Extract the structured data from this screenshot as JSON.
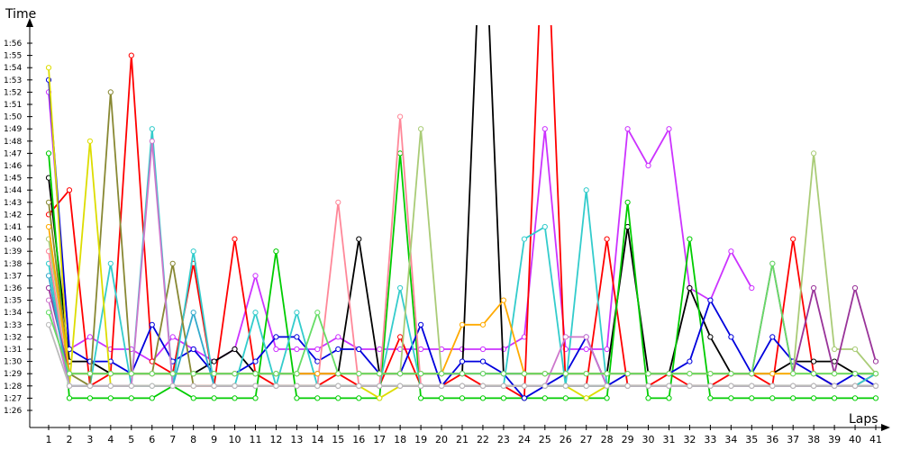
{
  "chart_data": {
    "type": "line",
    "title": "",
    "xlabel": "Laps",
    "ylabel": "Time",
    "xlim": [
      1,
      41
    ],
    "ylim_seconds": [
      84,
      118
    ],
    "grid": false,
    "legend": "none",
    "x_ticks": [
      "1",
      "2",
      "3",
      "4",
      "5",
      "6",
      "7",
      "8",
      "9",
      "10",
      "11",
      "12",
      "13",
      "14",
      "15",
      "16",
      "17",
      "18",
      "19",
      "20",
      "21",
      "22",
      "23",
      "24",
      "25",
      "26",
      "27",
      "28",
      "29",
      "30",
      "31",
      "32",
      "33",
      "34",
      "35",
      "36",
      "37",
      "38",
      "39",
      "40",
      "41"
    ],
    "y_ticks": [
      "1:26",
      "1:27",
      "1:28",
      "1:29",
      "1:30",
      "1:31",
      "1:32",
      "1:33",
      "1:34",
      "1:35",
      "1:36",
      "1:37",
      "1:38",
      "1:39",
      "1:40",
      "1:41",
      "1:42",
      "1:43",
      "1:44",
      "1:45",
      "1:46",
      "1:47",
      "1:48",
      "1:49",
      "1:50",
      "1:51",
      "1:52",
      "1:53",
      "1:54",
      "1:55",
      "1:56"
    ],
    "series": [
      {
        "color": "#cc33ff",
        "values": [
          112,
          91,
          92,
          91,
          91,
          90,
          92,
          91,
          90,
          91,
          97,
          91,
          91,
          91,
          92,
          91,
          91,
          91,
          91,
          91,
          91,
          91,
          91,
          92,
          109,
          91,
          91,
          91,
          109,
          106,
          109,
          96,
          95,
          99,
          96
        ]
      },
      {
        "color": "#ff0000",
        "values": [
          102,
          104,
          88,
          89,
          115,
          90,
          89,
          98,
          88,
          100,
          89,
          88,
          88,
          88,
          89,
          88,
          88,
          92,
          88,
          88,
          89,
          88,
          88,
          87,
          130,
          88,
          88,
          100,
          88,
          88,
          89,
          88,
          88,
          89,
          89,
          88,
          100,
          89,
          88,
          88,
          89
        ]
      },
      {
        "color": "#000000",
        "values": [
          105,
          90,
          90,
          89,
          89,
          89,
          89,
          89,
          90,
          91,
          89,
          89,
          89,
          89,
          89,
          100,
          89,
          89,
          89,
          89,
          89,
          130,
          89,
          89,
          89,
          89,
          89,
          89,
          101,
          89,
          89,
          96,
          92,
          89,
          89,
          89,
          90,
          90,
          90,
          89,
          89
        ]
      },
      {
        "color": "#00cc00",
        "values": [
          107,
          87,
          87,
          87,
          87,
          87,
          88,
          87,
          87,
          87,
          87,
          99,
          87,
          87,
          87,
          87,
          87,
          107,
          87,
          87,
          87,
          87,
          87,
          87,
          87,
          87,
          87,
          87,
          103,
          87,
          87,
          100,
          87,
          87,
          87,
          87,
          87,
          87,
          87,
          87,
          87
        ]
      },
      {
        "color": "#0000dd",
        "values": [
          113,
          91,
          90,
          90,
          89,
          93,
          90,
          91,
          89,
          89,
          90,
          92,
          92,
          90,
          91,
          91,
          89,
          89,
          93,
          88,
          90,
          90,
          89,
          87,
          88,
          89,
          92,
          88,
          89,
          89,
          89,
          90,
          95,
          92,
          89,
          92,
          90,
          89,
          88,
          89,
          88
        ]
      },
      {
        "color": "#33cccc",
        "values": [
          98,
          88,
          88,
          98,
          88,
          109,
          88,
          99,
          88,
          88,
          94,
          88,
          94,
          88,
          88,
          88,
          88,
          96,
          88,
          88,
          88,
          88,
          88,
          100,
          101,
          88,
          104,
          88,
          88,
          88,
          88,
          88,
          88,
          88,
          88,
          88,
          88,
          88,
          88,
          88,
          89
        ]
      },
      {
        "color": "#888833",
        "values": [
          103,
          89,
          88,
          112,
          89,
          89,
          98,
          88,
          88,
          88,
          88,
          88,
          88,
          88,
          88,
          88,
          88,
          88,
          88,
          88,
          88,
          88,
          88,
          88,
          88,
          88,
          88,
          88,
          88,
          88,
          88,
          88,
          88,
          88,
          88,
          88,
          88,
          88,
          88,
          88,
          88
        ]
      },
      {
        "color": "#dddd00",
        "values": [
          114,
          88,
          108,
          88,
          88,
          88,
          88,
          88,
          88,
          88,
          88,
          88,
          88,
          88,
          88,
          88,
          87,
          88,
          88,
          88,
          88,
          88,
          88,
          88,
          88,
          88,
          87,
          88,
          88,
          88,
          88,
          88,
          88,
          88,
          88,
          88,
          88,
          88,
          88,
          88,
          88
        ]
      },
      {
        "color": "#ff8899",
        "values": [
          99,
          88,
          88,
          88,
          88,
          88,
          88,
          88,
          88,
          88,
          88,
          88,
          88,
          88,
          103,
          88,
          88,
          110,
          88,
          88,
          88,
          88,
          88,
          88,
          88,
          88,
          88,
          88,
          88,
          88,
          88,
          88,
          88,
          88,
          88,
          88,
          88,
          88,
          88,
          88,
          88
        ]
      },
      {
        "color": "#aacc77",
        "values": [
          100,
          89,
          89,
          89,
          89,
          89,
          89,
          89,
          89,
          89,
          89,
          89,
          89,
          89,
          89,
          89,
          89,
          89,
          109,
          89,
          89,
          89,
          89,
          89,
          89,
          89,
          89,
          89,
          89,
          89,
          89,
          89,
          89,
          89,
          89,
          89,
          89,
          107,
          91,
          91,
          89
        ]
      },
      {
        "color": "#993399",
        "values": [
          96,
          89,
          89,
          89,
          89,
          89,
          89,
          89,
          89,
          89,
          89,
          89,
          89,
          89,
          89,
          89,
          89,
          89,
          89,
          89,
          89,
          89,
          89,
          89,
          89,
          89,
          89,
          89,
          89,
          89,
          89,
          89,
          89,
          89,
          89,
          98,
          89,
          96,
          89,
          96,
          90
        ]
      },
      {
        "color": "#ffaa00",
        "values": [
          101,
          89,
          89,
          89,
          89,
          89,
          89,
          89,
          89,
          89,
          89,
          89,
          89,
          89,
          89,
          89,
          89,
          89,
          89,
          89,
          93,
          93,
          95,
          89,
          89,
          89,
          89,
          89,
          89,
          89,
          89,
          89,
          89,
          89,
          89,
          89,
          89,
          89,
          89,
          89,
          89
        ]
      },
      {
        "color": "#33aacc",
        "values": [
          97,
          88,
          88,
          88,
          88,
          88,
          88,
          94,
          88,
          88,
          88,
          88,
          88,
          88,
          88,
          88,
          88,
          88,
          88,
          88,
          88,
          88,
          88,
          88,
          88,
          88,
          88,
          88,
          88,
          88,
          88,
          88,
          88,
          88,
          88,
          88,
          88,
          88,
          88,
          88,
          88
        ]
      },
      {
        "color": "#cc77cc",
        "values": [
          95,
          88,
          88,
          88,
          88,
          108,
          88,
          88,
          88,
          88,
          88,
          88,
          88,
          88,
          88,
          88,
          88,
          88,
          88,
          88,
          88,
          88,
          88,
          88,
          88,
          92,
          92,
          88,
          88,
          88,
          88,
          88,
          88,
          88,
          88,
          88,
          88,
          88,
          88,
          88,
          88
        ]
      },
      {
        "color": "#bbbbbb",
        "values": [
          93,
          88,
          88,
          88,
          88,
          88,
          88,
          88,
          88,
          88,
          88,
          88,
          88,
          88,
          88,
          88,
          88,
          88,
          88,
          88,
          88,
          88,
          88,
          88,
          88,
          88,
          88,
          88,
          88,
          88,
          88,
          88,
          88,
          88,
          88,
          88,
          88,
          88,
          88,
          88,
          88
        ]
      },
      {
        "color": "#66dd66",
        "values": [
          94,
          89,
          89,
          89,
          89,
          89,
          89,
          89,
          89,
          89,
          89,
          89,
          89,
          94,
          89,
          89,
          89,
          89,
          89,
          89,
          89,
          89,
          89,
          89,
          89,
          89,
          89,
          89,
          89,
          89,
          89,
          89,
          89,
          89,
          89,
          98,
          89,
          89,
          89,
          89,
          89
        ]
      }
    ]
  }
}
